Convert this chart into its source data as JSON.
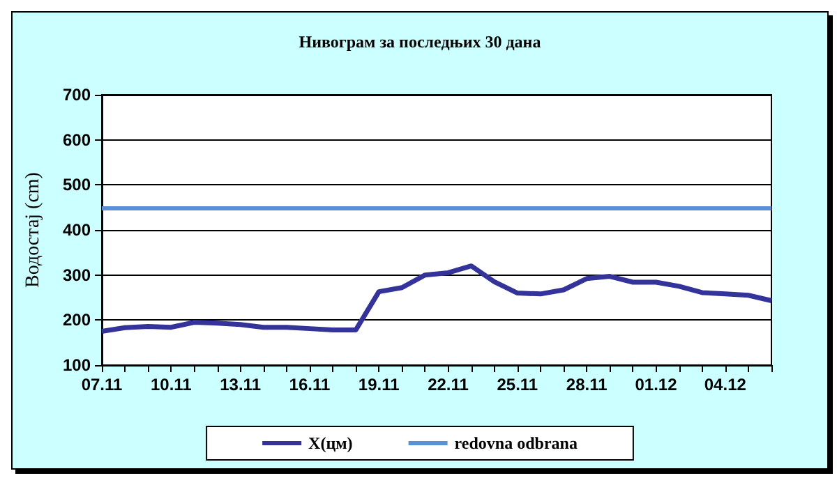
{
  "chart_data": {
    "type": "line",
    "title": "Нивограм за последњих 30 дана",
    "ylabel": "Водостај (cm)",
    "categories": [
      "07.11",
      null,
      null,
      "10.11",
      null,
      null,
      "13.11",
      null,
      null,
      "16.11",
      null,
      null,
      "19.11",
      null,
      null,
      "22.11",
      null,
      null,
      "25.11",
      null,
      null,
      "28.11",
      null,
      null,
      "01.12",
      null,
      null,
      "04.12",
      null,
      null
    ],
    "series": [
      {
        "name": "X(цм)",
        "color": "#333399",
        "values": [
          175,
          183,
          186,
          184,
          195,
          193,
          190,
          184,
          184,
          181,
          178,
          178,
          263,
          272,
          300,
          305,
          320,
          285,
          260,
          258,
          267,
          292,
          297,
          284,
          284,
          275,
          261,
          258,
          255,
          243
        ]
      }
    ],
    "ref_lines": [
      {
        "axis": "y",
        "value": 450,
        "label": "redovna odbrana",
        "color": "#5b8fd8"
      }
    ],
    "ylim": [
      100,
      700
    ],
    "yticks": [
      100,
      200,
      300,
      400,
      500,
      600,
      700
    ],
    "grid": "y",
    "legend": "bottom",
    "marker": "none",
    "line_style": "solid"
  }
}
